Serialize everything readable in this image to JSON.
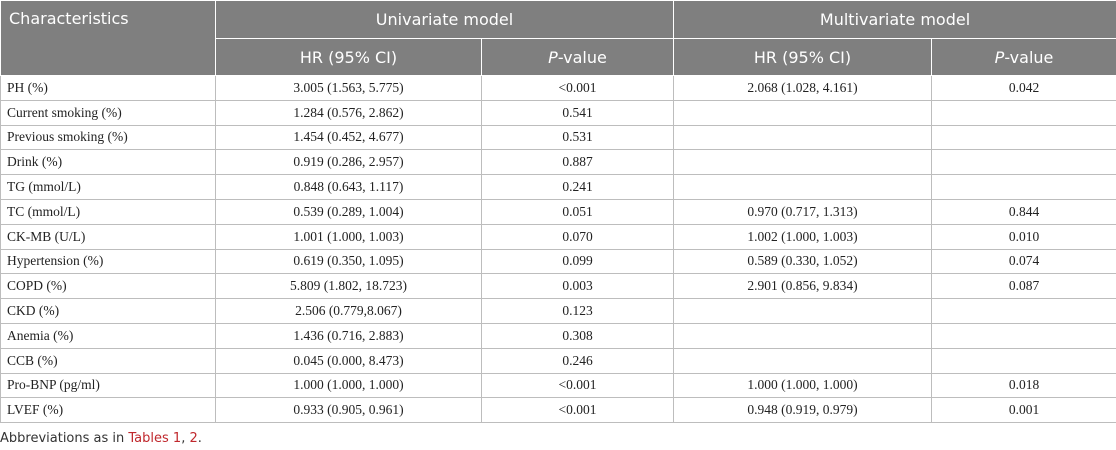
{
  "header": {
    "characteristics": "Characteristics",
    "univariate": "Univariate model",
    "multivariate": "Multivariate model",
    "hr": "HR (95% CI)",
    "p_italic": "P",
    "p_rest": "-value"
  },
  "table": {
    "rows": [
      [
        "PH (%)",
        "3.005 (1.563, 5.775)",
        "<0.001",
        "2.068 (1.028, 4.161)",
        "0.042"
      ],
      [
        "Current smoking (%)",
        "1.284 (0.576, 2.862)",
        "0.541"
      ],
      [
        "Previous smoking (%)",
        "1.454 (0.452, 4.677)",
        "0.531"
      ],
      [
        "Drink (%)",
        "0.919 (0.286, 2.957)",
        "0.887"
      ],
      [
        "TG (mmol/L)",
        "0.848 (0.643, 1.117)",
        "0.241"
      ],
      [
        "TC (mmol/L)",
        "0.539 (0.289, 1.004)",
        "0.051",
        "0.970 (0.717, 1.313)",
        "0.844"
      ],
      [
        "CK-MB (U/L)",
        "1.001 (1.000, 1.003)",
        "0.070",
        "1.002 (1.000, 1.003)",
        "0.010"
      ],
      [
        "Hypertension (%)",
        "0.619 (0.350, 1.095)",
        "0.099",
        "0.589 (0.330, 1.052)",
        "0.074"
      ],
      [
        "COPD (%)",
        "5.809 (1.802, 18.723)",
        "0.003",
        "2.901 (0.856, 9.834)",
        "0.087"
      ],
      [
        "CKD (%)",
        "2.506 (0.779,8.067)",
        "0.123"
      ],
      [
        "Anemia (%)",
        "1.436 (0.716, 2.883)",
        "0.308"
      ],
      [
        "CCB (%)",
        "0.045 (0.000, 8.473)",
        "0.246"
      ],
      [
        "Pro-BNP (pg/ml)",
        "1.000 (1.000, 1.000)",
        "<0.001",
        "1.000 (1.000, 1.000)",
        "0.018"
      ],
      [
        "LVEF (%)",
        "0.933 (0.905, 0.961)",
        "<0.001",
        "0.948 (0.919, 0.979)",
        "0.001"
      ]
    ]
  },
  "footnote": {
    "text": "Abbreviations as in ",
    "link1": "Tables 1",
    "sep": ", ",
    "link2": "2",
    "end": "."
  }
}
